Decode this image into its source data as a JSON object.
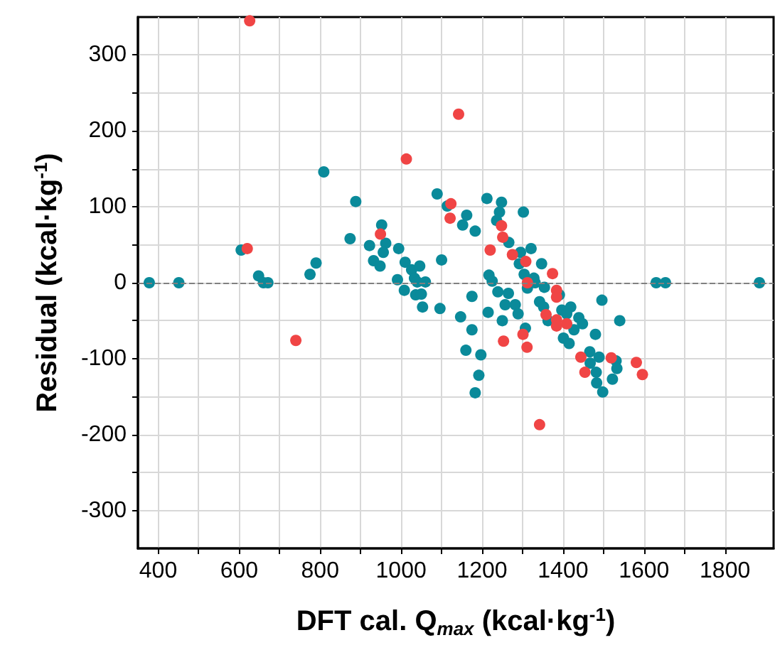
{
  "chart_data": {
    "type": "scatter",
    "xlabel": "DFT cal. Q$_{max}$ (kcal·kg$^{-1}$)",
    "ylabel": "Residual (kcal·kg$^{-1}$)",
    "series": [
      {
        "color": "#0a8a9a",
        "x": [
          378,
          451,
          605,
          648,
          660,
          671,
          775,
          790,
          809,
          888,
          874,
          952,
          922,
          962,
          956,
          932,
          948,
          994,
          1010,
          991,
          1008,
          1026,
          1046,
          1033,
          1040,
          1060,
          1036,
          1050,
          1053,
          1096,
          1100,
          1089,
          1114,
          1212,
          1248,
          1302,
          1162,
          1152,
          1183,
          1243,
          1236,
          1266,
          1321,
          1295,
          1292,
          1347,
          1217,
          1225,
          1304,
          1328,
          1312,
          1331,
          1354,
          1391,
          1175,
          1239,
          1265,
          1257,
          1282,
          1342,
          1352,
          1215,
          1289,
          1147,
          1250,
          1397,
          1419,
          1409,
          1363,
          1439,
          1448,
          1427,
          1496,
          1540,
          1630,
          1653,
          1175,
          1307,
          1160,
          1197,
          1192,
          1183,
          1401,
          1415,
          1480,
          1466,
          1489,
          1467,
          1482,
          1483,
          1498,
          1522,
          1531,
          1533,
          1885
        ],
        "values": [
          0,
          0,
          43,
          9,
          0,
          0,
          11,
          26,
          146,
          107,
          58,
          76,
          49,
          52,
          40,
          29,
          22,
          45,
          27,
          4,
          -10,
          17,
          22,
          6,
          1,
          1,
          -16,
          -15,
          -32,
          -34,
          30,
          117,
          101,
          111,
          106,
          93,
          89,
          76,
          68,
          93,
          82,
          53,
          45,
          40,
          25,
          25,
          10,
          2,
          11,
          6,
          -7,
          0,
          -6,
          -16,
          -18,
          -12,
          -14,
          -29,
          -29,
          -25,
          -32,
          -39,
          -41,
          -45,
          -50,
          -36,
          -32,
          -41,
          -50,
          -46,
          -54,
          -62,
          -23,
          -50,
          0,
          0,
          -62,
          -60,
          -89,
          -95,
          -122,
          -145,
          -73,
          -80,
          -68,
          -91,
          -98,
          -106,
          -118,
          -132,
          -144,
          -127,
          -103,
          -113,
          0
        ]
      },
      {
        "color": "#f04545",
        "x": [
          626,
          620,
          740,
          949,
          1013,
          1123,
          1121,
          1142,
          1248,
          1251,
          1275,
          1220,
          1308,
          1374,
          1312,
          1384,
          1384,
          1358,
          1384,
          1384,
          1409,
          1301,
          1311,
          1253,
          1444,
          1454,
          1519,
          1581,
          1596,
          1342
        ],
        "values": [
          345,
          45,
          -76,
          64,
          163,
          104,
          85,
          222,
          75,
          60,
          37,
          43,
          28,
          12,
          0,
          -10,
          -19,
          -42,
          -49,
          -57,
          -54,
          -68,
          -85,
          -77,
          -98,
          -118,
          -99,
          -105,
          -121,
          -187
        ]
      }
    ],
    "marker": "circle",
    "xlim": [
      350,
      1920
    ],
    "xticks": [
      400,
      {
        "value": 500,
        "label": null
      },
      600,
      {
        "value": 700,
        "label": null
      },
      800,
      {
        "value": 900,
        "label": null
      },
      1000,
      {
        "value": 1100,
        "label": null
      },
      1200,
      {
        "value": 1300,
        "label": null
      },
      1400,
      {
        "value": 1500,
        "label": null
      },
      1600,
      {
        "value": 1700,
        "label": null
      },
      1800
    ],
    "ylim": [
      -350,
      350
    ],
    "yticks": [
      -300,
      {
        "value": -250,
        "label": null
      },
      -200,
      {
        "value": -150,
        "label": null
      },
      -100,
      {
        "value": -50,
        "label": null
      },
      0,
      {
        "value": 50,
        "label": null
      },
      100,
      {
        "value": 150,
        "label": null
      },
      200,
      {
        "value": 250,
        "label": null
      },
      300
    ],
    "grid": true,
    "ref_lines": [
      {
        "axis": "y",
        "value": 0,
        "color": "#808080",
        "line_style": "dashed"
      }
    ]
  }
}
